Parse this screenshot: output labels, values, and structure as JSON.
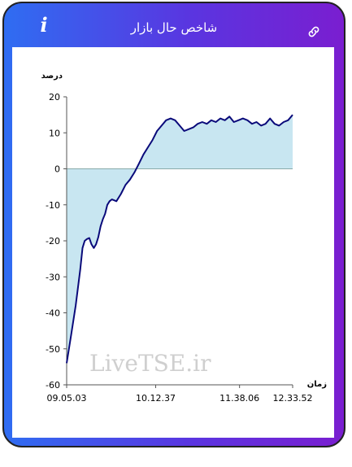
{
  "header": {
    "title": "شاخص حال بازار",
    "info_icon": "info-icon",
    "link_icon": "link-icon"
  },
  "colors": {
    "gradient_start": "#2f6df2",
    "gradient_end": "#7a1ed0",
    "line": "#0a0a7a",
    "fill": "#c8e6f1"
  },
  "watermark": "LiveTSE.ir",
  "chart_data": {
    "type": "area",
    "ylabel": "درصد",
    "xlabel": "زمان",
    "ylim": [
      -60,
      20
    ],
    "yticks": [
      20,
      10,
      0,
      -10,
      -20,
      -30,
      -40,
      -50,
      -60
    ],
    "xtick_labels": [
      "09.05.03",
      "10.12.37",
      "11.38.06",
      "12.33.52"
    ],
    "series": [
      {
        "x": [
          0,
          0.02,
          0.04,
          0.06,
          0.07,
          0.08,
          0.09,
          0.1,
          0.11,
          0.12,
          0.13,
          0.14,
          0.15,
          0.16,
          0.17,
          0.18,
          0.19,
          0.2,
          0.22,
          0.24,
          0.26,
          0.28,
          0.3,
          0.32,
          0.34,
          0.36,
          0.38,
          0.4,
          0.42,
          0.44,
          0.46,
          0.48,
          0.5,
          0.52,
          0.54,
          0.56,
          0.58,
          0.6,
          0.62,
          0.64,
          0.66,
          0.68,
          0.7,
          0.72,
          0.74,
          0.76,
          0.78,
          0.8,
          0.82,
          0.84,
          0.86,
          0.88,
          0.9,
          0.92,
          0.94,
          0.96,
          0.98,
          1.0
        ],
        "values": [
          -54,
          -46,
          -38,
          -28,
          -22,
          -20,
          -19.5,
          -19.2,
          -21,
          -22,
          -21,
          -19,
          -16,
          -14,
          -12.5,
          -10,
          -9,
          -8.5,
          -9,
          -7,
          -4.5,
          -3,
          -1,
          1.5,
          4,
          6,
          8,
          10.5,
          12,
          13.5,
          14,
          13.5,
          12,
          10.5,
          11,
          11.5,
          12.5,
          13,
          12.5,
          13.5,
          13,
          14,
          13.5,
          14.5,
          13,
          13.5,
          14,
          13.5,
          12.5,
          13,
          12,
          12.5,
          14,
          12.5,
          12,
          13,
          13.5,
          15
        ]
      }
    ]
  }
}
